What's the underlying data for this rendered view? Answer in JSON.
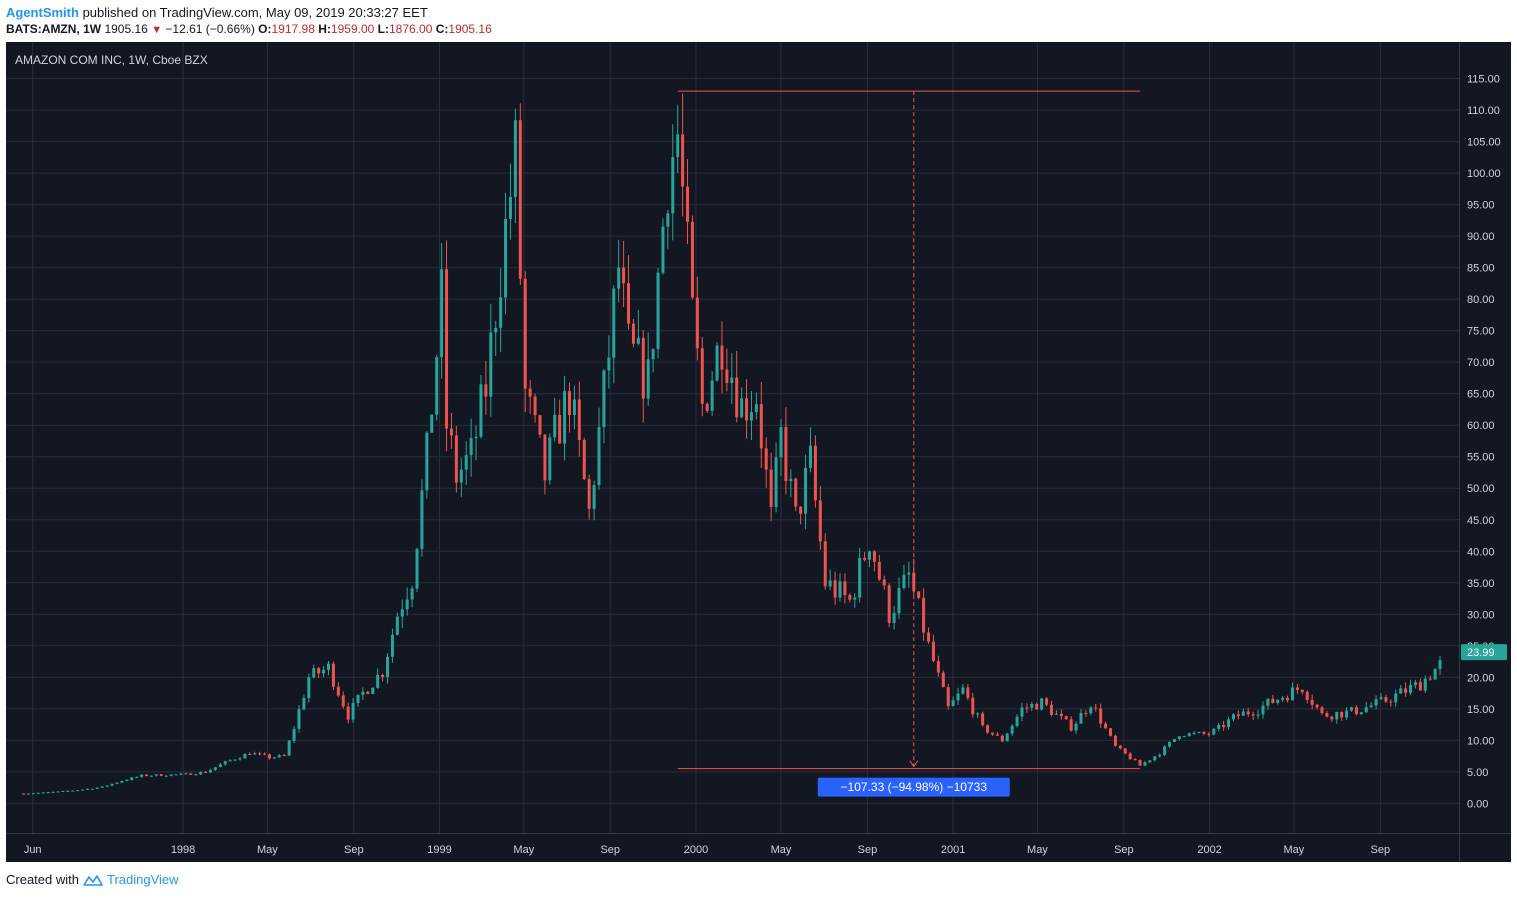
{
  "header": {
    "author": "AgentSmith",
    "published": "published on TradingView.com, May 09, 2019 20:33:27 EET",
    "symbol": "BATS:AMZN, 1W",
    "last": "1905.16",
    "change": "−12.61 (−0.66%)",
    "open_label": "O:",
    "open": "1917.98",
    "high_label": "H:",
    "high": "1959.00",
    "low_label": "L:",
    "low": "1876.00",
    "close_label": "C:",
    "close": "1905.16"
  },
  "footer": {
    "created_with": "Created with",
    "brand": "TradingView"
  },
  "colors": {
    "background": "#131722",
    "grid": "#2a2e39",
    "up": "#26a69a",
    "down": "#ef5350",
    "measure": "#2962ff",
    "axis_text": "#d1d4dc"
  },
  "chart_data": {
    "type": "candlestick",
    "title": "AMAZON COM INC, 1W, Cboe BZX",
    "ylim": [
      -4.7,
      120.8
    ],
    "yticks": [
      0,
      5,
      10,
      15,
      20,
      25,
      30,
      35,
      40,
      45,
      50,
      55,
      60,
      65,
      70,
      75,
      80,
      85,
      90,
      95,
      100,
      105,
      110,
      115
    ],
    "ytick_labels": [
      "0.00",
      "5.00",
      "10.00",
      "15.00",
      "20.00",
      "25.00",
      "30.00",
      "35.00",
      "40.00",
      "45.00",
      "50.00",
      "55.00",
      "60.00",
      "65.00",
      "70.00",
      "75.00",
      "80.00",
      "85.00",
      "90.00",
      "95.00",
      "100.00",
      "105.00",
      "110.00",
      "115.00"
    ],
    "xticks": [
      {
        "date": "1997-06-01",
        "label": "Jun"
      },
      {
        "date": "1998-01-01",
        "label": "1998"
      },
      {
        "date": "1998-05-01",
        "label": "May"
      },
      {
        "date": "1998-09-01",
        "label": "Sep"
      },
      {
        "date": "1999-01-01",
        "label": "1999"
      },
      {
        "date": "1999-05-01",
        "label": "May"
      },
      {
        "date": "1999-09-01",
        "label": "Sep"
      },
      {
        "date": "2000-01-01",
        "label": "2000"
      },
      {
        "date": "2000-05-01",
        "label": "May"
      },
      {
        "date": "2000-09-01",
        "label": "Sep"
      },
      {
        "date": "2001-01-01",
        "label": "2001"
      },
      {
        "date": "2001-05-01",
        "label": "May"
      },
      {
        "date": "2001-09-01",
        "label": "Sep"
      },
      {
        "date": "2002-01-01",
        "label": "2002"
      },
      {
        "date": "2002-05-01",
        "label": "May"
      },
      {
        "date": "2002-09-01",
        "label": "Sep"
      }
    ],
    "price_tag": "23.99",
    "measure": {
      "label": "−107.33 (−94.98%) −10733",
      "from_date": "1999-12-06",
      "from_price": 113.0,
      "to_date": "2001-09-24",
      "to_price": 5.51,
      "mid_date": "2000-11-06"
    },
    "anchors": [
      {
        "date": "1997-05-19",
        "close": 1.55
      },
      {
        "date": "1997-06-16",
        "close": 1.7
      },
      {
        "date": "1997-07-14",
        "close": 1.9
      },
      {
        "date": "1997-08-11",
        "close": 2.2
      },
      {
        "date": "1997-09-08",
        "close": 2.6
      },
      {
        "date": "1997-10-06",
        "close": 3.6
      },
      {
        "date": "1997-11-03",
        "close": 4.4
      },
      {
        "date": "1997-12-01",
        "close": 4.5
      },
      {
        "date": "1998-01-05",
        "close": 4.6
      },
      {
        "date": "1998-02-02",
        "close": 5.0
      },
      {
        "date": "1998-03-02",
        "close": 6.5
      },
      {
        "date": "1998-04-06",
        "close": 8.0
      },
      {
        "date": "1998-05-04",
        "close": 7.3
      },
      {
        "date": "1998-05-25",
        "close": 7.5
      },
      {
        "date": "1998-06-08",
        "close": 12.0
      },
      {
        "date": "1998-06-29",
        "close": 20.0
      },
      {
        "date": "1998-07-27",
        "close": 21.5
      },
      {
        "date": "1998-08-24",
        "close": 14.0
      },
      {
        "date": "1998-09-14",
        "close": 17.5
      },
      {
        "date": "1998-10-12",
        "close": 21.0
      },
      {
        "date": "1998-11-02",
        "close": 30.0
      },
      {
        "date": "1998-11-23",
        "close": 36.0
      },
      {
        "date": "1998-12-14",
        "close": 55.0
      },
      {
        "date": "1999-01-04",
        "close": 80.0
      },
      {
        "date": "1999-01-11",
        "close": 60.0
      },
      {
        "date": "1999-01-25",
        "close": 52.0
      },
      {
        "date": "1999-02-15",
        "close": 55.0
      },
      {
        "date": "1999-03-08",
        "close": 66.0
      },
      {
        "date": "1999-03-29",
        "close": 85.0
      },
      {
        "date": "1999-04-19",
        "close": 103.0
      },
      {
        "date": "1999-05-03",
        "close": 65.0
      },
      {
        "date": "1999-05-31",
        "close": 52.0
      },
      {
        "date": "1999-06-14",
        "close": 58.0
      },
      {
        "date": "1999-07-05",
        "close": 65.0
      },
      {
        "date": "1999-08-02",
        "close": 46.0
      },
      {
        "date": "1999-08-23",
        "close": 65.0
      },
      {
        "date": "1999-09-13",
        "close": 85.0
      },
      {
        "date": "1999-09-27",
        "close": 72.0
      },
      {
        "date": "1999-10-25",
        "close": 67.0
      },
      {
        "date": "1999-11-22",
        "close": 100.0
      },
      {
        "date": "1999-12-06",
        "close": 106.0
      },
      {
        "date": "1999-12-27",
        "close": 77.0
      },
      {
        "date": "2000-01-10",
        "close": 63.0
      },
      {
        "date": "2000-02-07",
        "close": 74.0
      },
      {
        "date": "2000-03-06",
        "close": 63.0
      },
      {
        "date": "2000-03-27",
        "close": 65.0
      },
      {
        "date": "2000-04-17",
        "close": 45.0
      },
      {
        "date": "2000-05-01",
        "close": 58.0
      },
      {
        "date": "2000-05-22",
        "close": 45.0
      },
      {
        "date": "2000-06-12",
        "close": 54.0
      },
      {
        "date": "2000-07-03",
        "close": 35.0
      },
      {
        "date": "2000-08-07",
        "close": 32.0
      },
      {
        "date": "2000-09-04",
        "close": 42.0
      },
      {
        "date": "2000-10-02",
        "close": 30.0
      },
      {
        "date": "2000-10-30",
        "close": 36.0
      },
      {
        "date": "2000-11-27",
        "close": 25.0
      },
      {
        "date": "2000-12-25",
        "close": 15.0
      },
      {
        "date": "2001-01-15",
        "close": 18.0
      },
      {
        "date": "2001-02-12",
        "close": 12.0
      },
      {
        "date": "2001-03-12",
        "close": 10.0
      },
      {
        "date": "2001-04-09",
        "close": 15.0
      },
      {
        "date": "2001-05-07",
        "close": 16.0
      },
      {
        "date": "2001-06-18",
        "close": 12.0
      },
      {
        "date": "2001-07-16",
        "close": 16.0
      },
      {
        "date": "2001-08-20",
        "close": 9.0
      },
      {
        "date": "2001-09-24",
        "close": 6.0
      },
      {
        "date": "2001-10-22",
        "close": 8.0
      },
      {
        "date": "2001-11-19",
        "close": 11.0
      },
      {
        "date": "2001-12-31",
        "close": 11.0
      },
      {
        "date": "2002-02-11",
        "close": 14.0
      },
      {
        "date": "2002-03-11",
        "close": 15.0
      },
      {
        "date": "2002-04-15",
        "close": 17.0
      },
      {
        "date": "2002-05-13",
        "close": 18.5
      },
      {
        "date": "2002-06-10",
        "close": 14.0
      },
      {
        "date": "2002-07-22",
        "close": 14.5
      },
      {
        "date": "2002-09-02",
        "close": 16.0
      },
      {
        "date": "2002-10-28",
        "close": 19.0
      },
      {
        "date": "2002-11-25",
        "close": 22.0
      }
    ]
  }
}
